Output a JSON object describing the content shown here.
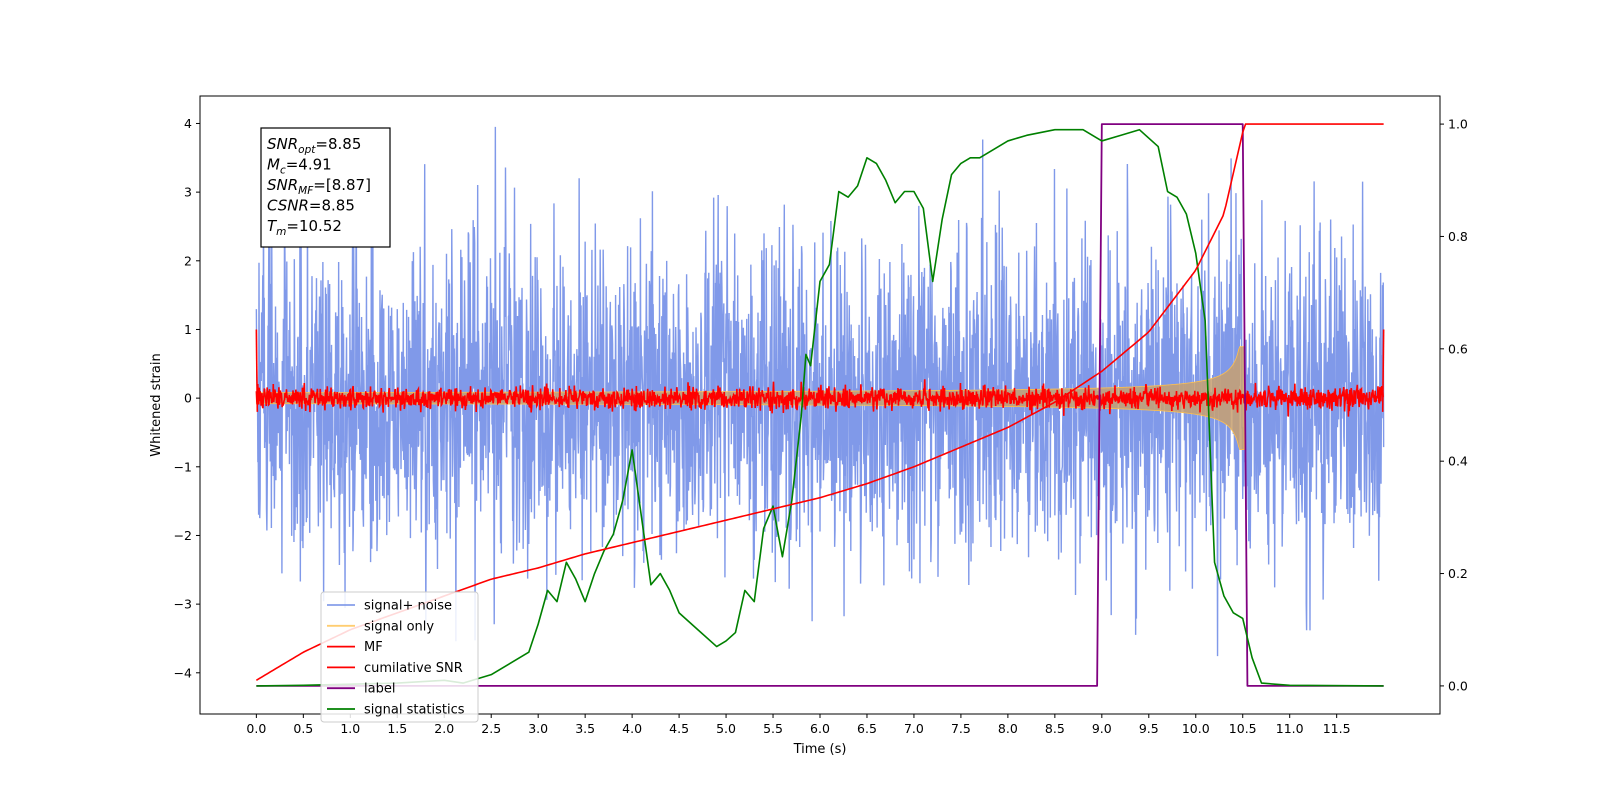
{
  "chart_data": {
    "type": "line",
    "xlabel": "Time (s)",
    "ylabel": "Whitened strain",
    "xlim": [
      -0.6,
      12.6
    ],
    "ylim_left": [
      -4.6,
      4.4
    ],
    "ylim_right": [
      -0.05,
      1.05
    ],
    "x_ticks": [
      0.0,
      0.5,
      1.0,
      1.5,
      2.0,
      2.5,
      3.0,
      3.5,
      4.0,
      4.5,
      5.0,
      5.5,
      6.0,
      6.5,
      7.0,
      7.5,
      8.0,
      8.5,
      9.0,
      9.5,
      10.0,
      10.5,
      11.0,
      11.5
    ],
    "x_tick_labels": [
      "0.0",
      "0.5",
      "1.0",
      "1.5",
      "2.0",
      "2.5",
      "3.0",
      "3.5",
      "4.0",
      "4.5",
      "5.0",
      "5.5",
      "6.0",
      "6.5",
      "7.0",
      "7.5",
      "8.0",
      "8.5",
      "9.0",
      "9.5",
      "10.0",
      "10.5",
      "11.0",
      "11.5"
    ],
    "y_left_ticks": [
      -4,
      -3,
      -2,
      -1,
      0,
      1,
      2,
      3,
      4
    ],
    "y_left_tick_labels": [
      "−4",
      "−3",
      "−2",
      "−1",
      "0",
      "1",
      "2",
      "3",
      "4"
    ],
    "y_right_ticks": [
      0.0,
      0.2,
      0.4,
      0.6,
      0.8,
      1.0
    ],
    "y_right_tick_labels": [
      "0.0",
      "0.2",
      "0.4",
      "0.6",
      "0.8",
      "1.0"
    ],
    "grid": false,
    "legend_position": "lower-left",
    "annotation": {
      "lines": [
        {
          "base": "SNR",
          "sub": "opt",
          "value": "=8.85"
        },
        {
          "base": "M",
          "sub": "c",
          "value": "=4.91"
        },
        {
          "base": "SNR",
          "sub": "MF",
          "value": "=[8.87]"
        },
        {
          "base": "CSNR",
          "sub": "",
          "value": "=8.85"
        },
        {
          "base": "T",
          "sub": "m",
          "value": "=10.52"
        }
      ]
    },
    "series": [
      {
        "name": "signal+ noise",
        "color": "#7994e8",
        "axis": "left",
        "note_shape": "noise",
        "band_lower": -2.2,
        "band_upper": 2.3,
        "t_start": 0.0,
        "t_end": 12.0
      },
      {
        "name": "signal only",
        "color": "#ffc04d",
        "axis": "left",
        "note_shape": "chirp",
        "t_end": 10.52
      },
      {
        "name": "MF",
        "color": "#ff0000",
        "axis": "left",
        "band_lower": -0.15,
        "band_upper": 0.15
      },
      {
        "name": "cumilative SNR",
        "color": "#ff0000",
        "axis": "right",
        "t_end": 10.52,
        "x": [
          0.0,
          0.5,
          1.0,
          1.5,
          2.0,
          2.5,
          3.0,
          3.5,
          4.0,
          4.5,
          5.0,
          5.5,
          6.0,
          6.5,
          7.0,
          7.5,
          8.0,
          8.5,
          9.0,
          9.5,
          10.0,
          10.3,
          10.52,
          12.0
        ],
        "y": [
          0.01,
          0.06,
          0.1,
          0.13,
          0.16,
          0.19,
          0.21,
          0.235,
          0.255,
          0.275,
          0.295,
          0.315,
          0.335,
          0.36,
          0.39,
          0.425,
          0.46,
          0.505,
          0.56,
          0.63,
          0.74,
          0.84,
          1.0,
          1.0
        ]
      },
      {
        "name": "label",
        "color": "#800080",
        "axis": "right",
        "x": [
          0.0,
          8.95,
          9.0,
          10.5,
          10.55,
          12.0
        ],
        "y": [
          0.0,
          0.0,
          1.0,
          1.0,
          0.0,
          0.0
        ]
      },
      {
        "name": "signal statistics",
        "color": "#008000",
        "axis": "right",
        "x": [
          0.0,
          0.5,
          1.0,
          1.5,
          2.0,
          2.2,
          2.5,
          2.7,
          2.9,
          3.0,
          3.1,
          3.2,
          3.3,
          3.4,
          3.5,
          3.6,
          3.7,
          3.8,
          3.9,
          4.0,
          4.1,
          4.2,
          4.3,
          4.4,
          4.5,
          4.7,
          4.9,
          5.0,
          5.1,
          5.2,
          5.3,
          5.4,
          5.5,
          5.6,
          5.7,
          5.8,
          5.85,
          5.9,
          6.0,
          6.1,
          6.2,
          6.3,
          6.4,
          6.5,
          6.6,
          6.7,
          6.8,
          6.9,
          7.0,
          7.1,
          7.2,
          7.3,
          7.4,
          7.5,
          7.6,
          7.7,
          7.8,
          7.9,
          8.0,
          8.2,
          8.5,
          8.8,
          9.0,
          9.2,
          9.4,
          9.6,
          9.7,
          9.8,
          9.9,
          10.0,
          10.1,
          10.2,
          10.3,
          10.4,
          10.5,
          10.6,
          10.7,
          11.0,
          12.0
        ],
        "y": [
          0.0,
          0.001,
          0.003,
          0.005,
          0.01,
          0.005,
          0.02,
          0.04,
          0.06,
          0.11,
          0.17,
          0.15,
          0.22,
          0.19,
          0.15,
          0.2,
          0.24,
          0.27,
          0.33,
          0.42,
          0.3,
          0.18,
          0.2,
          0.17,
          0.13,
          0.1,
          0.07,
          0.08,
          0.095,
          0.17,
          0.15,
          0.28,
          0.32,
          0.23,
          0.33,
          0.48,
          0.59,
          0.57,
          0.72,
          0.75,
          0.88,
          0.87,
          0.89,
          0.94,
          0.93,
          0.9,
          0.86,
          0.88,
          0.88,
          0.85,
          0.72,
          0.83,
          0.91,
          0.93,
          0.94,
          0.94,
          0.95,
          0.96,
          0.97,
          0.98,
          0.99,
          0.99,
          0.97,
          0.98,
          0.99,
          0.96,
          0.88,
          0.87,
          0.84,
          0.77,
          0.65,
          0.22,
          0.16,
          0.13,
          0.12,
          0.05,
          0.005,
          0.001,
          0.0
        ]
      }
    ]
  }
}
